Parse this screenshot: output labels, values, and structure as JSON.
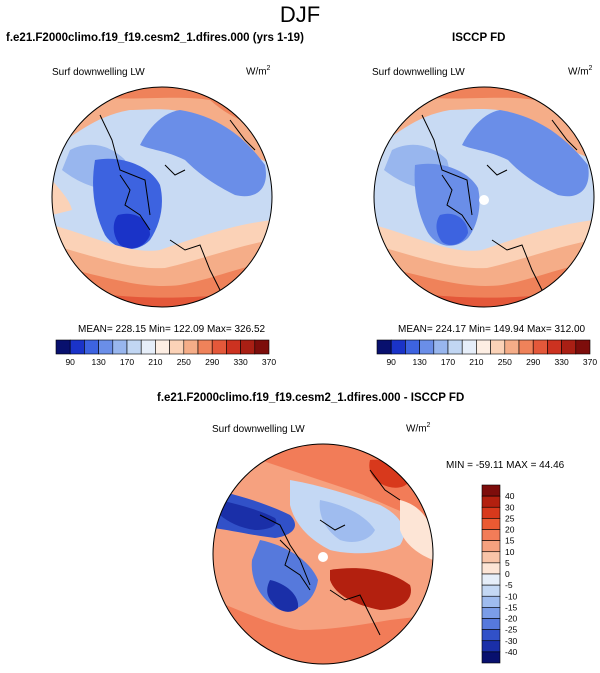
{
  "season": "DJF",
  "panels": [
    {
      "title": "f.e21.F2000climo.f19_f19.cesm2_1.dfires.000 (yrs 1-19)",
      "variable": "Surf downwelling LW",
      "units": "W/m",
      "units_exp": "2",
      "stats": "MEAN= 228.15  Min= 122.09  Max= 326.52"
    },
    {
      "title": "ISCCP FD",
      "variable": "Surf downwelling LW",
      "units": "W/m",
      "units_exp": "2",
      "stats": "MEAN= 224.17  Min= 149.94  Max= 312.00"
    },
    {
      "title": "f.e21.F2000climo.f19_f19.cesm2_1.dfires.000 - ISCCP FD",
      "variable": "Surf downwelling LW",
      "units": "W/m",
      "units_exp": "2",
      "stats": "MIN = -59.11  MAX =  44.46"
    }
  ],
  "colorbar_main": {
    "labels": [
      "90",
      "130",
      "170",
      "210",
      "250",
      "290",
      "330",
      "370"
    ],
    "colors": [
      "#08106e",
      "#1a33c8",
      "#3d63e0",
      "#6a8ee8",
      "#98b6ee",
      "#c1d6f3",
      "#e6eef9",
      "#fdeee3",
      "#fbd2b7",
      "#f5ad88",
      "#ef825a",
      "#e4583a",
      "#cc3220",
      "#a91f14",
      "#7d0d0b"
    ]
  },
  "colorbar_diff": {
    "labels": [
      "40",
      "30",
      "25",
      "20",
      "15",
      "10",
      "5",
      "0",
      "-5",
      "-10",
      "-15",
      "-20",
      "-25",
      "-30",
      "-40"
    ],
    "colors": [
      "#7d0d0b",
      "#b3200f",
      "#d8391c",
      "#eb5a32",
      "#f27c58",
      "#f6a17f",
      "#f9c4a8",
      "#fde5d6",
      "#e6eef9",
      "#c4d8f4",
      "#9fbcef",
      "#7b9de8",
      "#5679dc",
      "#3151c8",
      "#1a2fa8",
      "#08106e"
    ]
  },
  "chart_data": [
    {
      "type": "heatmap",
      "title": "f.e21.F2000climo.f19_f19.cesm2_1.dfires.000 (yrs 1-19)",
      "projection": "north polar stereographic",
      "variable": "Surf downwelling LW",
      "units": "W/m^2",
      "mean": 228.15,
      "min": 122.09,
      "max": 326.52,
      "colorbar_levels": [
        90,
        130,
        170,
        210,
        250,
        290,
        330,
        370
      ]
    },
    {
      "type": "heatmap",
      "title": "ISCCP FD",
      "projection": "north polar stereographic",
      "variable": "Surf downwelling LW",
      "units": "W/m^2",
      "mean": 224.17,
      "min": 149.94,
      "max": 312.0,
      "colorbar_levels": [
        90,
        130,
        170,
        210,
        250,
        290,
        330,
        370
      ]
    },
    {
      "type": "heatmap",
      "title": "f.e21.F2000climo.f19_f19.cesm2_1.dfires.000 - ISCCP FD",
      "projection": "north polar stereographic",
      "variable": "Surf downwelling LW",
      "units": "W/m^2",
      "min": -59.11,
      "max": 44.46,
      "colorbar_levels": [
        40,
        30,
        25,
        20,
        15,
        10,
        5,
        0,
        -5,
        -10,
        -15,
        -20,
        -25,
        -30,
        -40
      ]
    }
  ]
}
